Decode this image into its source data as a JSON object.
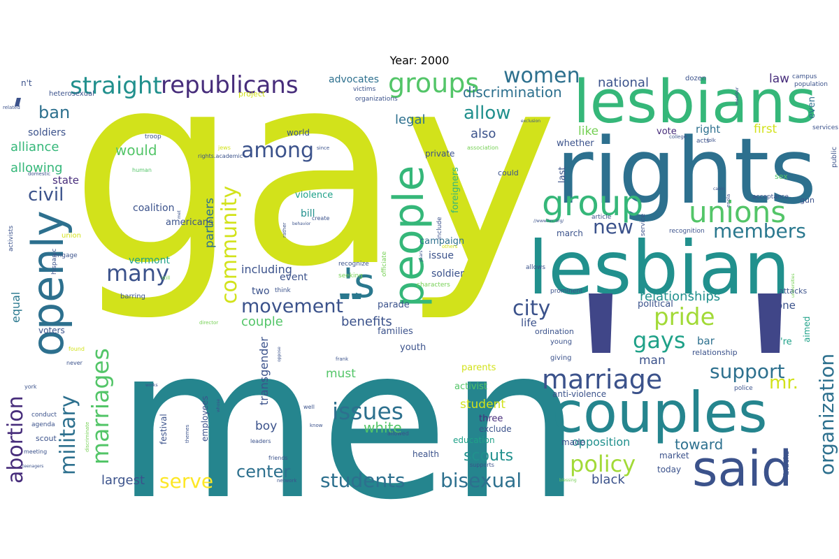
{
  "title": "Year: 2000",
  "palette": {
    "yellow": "#d2e21b",
    "lime": "#a2da37",
    "green": "#53c568",
    "lightgreen": "#75d054",
    "teal": "#25858e",
    "tealdark": "#21908d",
    "blue": "#2d708e",
    "slate": "#3b528b",
    "navy": "#404688",
    "purple": "#472d7b",
    "darkpurple": "#481d6f",
    "brightyellow": "#fde725",
    "sea": "#1fa188",
    "aqua": "#2a788e",
    "mint": "#35b779"
  },
  "words": [
    {
      "text": "gay",
      "color": "#d2e21b"
    },
    {
      "text": "men",
      "color": "#25858e"
    },
    {
      "text": "rights",
      "color": "#2d708e"
    },
    {
      "text": "lesbians",
      "color": "#35b779"
    },
    {
      "text": "lesbian",
      "color": "#21908d"
    },
    {
      "text": "couples",
      "color": "#25858e"
    },
    {
      "text": "said",
      "color": "#3b528b"
    },
    {
      "text": "openly",
      "color": "#2d708e"
    },
    {
      "text": "people",
      "color": "#35b779"
    },
    {
      "text": "'s",
      "color": "#2a788e"
    },
    {
      "text": "unions",
      "color": "#53c568"
    },
    {
      "text": "group",
      "color": "#35b779"
    },
    {
      "text": "straight",
      "color": "#21908d"
    },
    {
      "text": "republicans",
      "color": "#472d7b"
    },
    {
      "text": "groups",
      "color": "#53c568"
    },
    {
      "text": "women",
      "color": "#2d708e"
    },
    {
      "text": "community",
      "color": "#d2e21b"
    },
    {
      "text": "among",
      "color": "#3b528b"
    },
    {
      "text": "marriage",
      "color": "#3b528b"
    },
    {
      "text": "marriages",
      "color": "#53c568"
    },
    {
      "text": "military",
      "color": "#2d708e"
    },
    {
      "text": "abortion",
      "color": "#472d7b"
    },
    {
      "text": "organization",
      "color": "#2d708e"
    },
    {
      "text": "issues",
      "color": "#2d708e"
    },
    {
      "text": "students",
      "color": "#2d708e"
    },
    {
      "text": "bisexual",
      "color": "#2d708e"
    },
    {
      "text": "policy",
      "color": "#a2da37"
    },
    {
      "text": "pride",
      "color": "#a2da37"
    },
    {
      "text": "gays",
      "color": "#1fa188"
    },
    {
      "text": "support",
      "color": "#2d708e"
    },
    {
      "text": "members",
      "color": "#2a788e"
    },
    {
      "text": "many",
      "color": "#3b528b"
    },
    {
      "text": "movement",
      "color": "#3b528b"
    },
    {
      "text": "city",
      "color": "#3b528b"
    },
    {
      "text": "serve",
      "color": "#fde725"
    },
    {
      "text": "civil",
      "color": "#3b528b"
    },
    {
      "text": "ban",
      "color": "#2d708e"
    },
    {
      "text": "allow",
      "color": "#21908d"
    },
    {
      "text": "new",
      "color": "#3b528b"
    },
    {
      "text": "center",
      "color": "#2d708e"
    },
    {
      "text": "mr.",
      "color": "#d2e21b"
    },
    {
      "text": "discrimination",
      "color": "#2d708e"
    },
    {
      "text": "would",
      "color": "#53c568"
    },
    {
      "text": "alliance",
      "color": "#35b779"
    },
    {
      "text": "allowing",
      "color": "#35b779"
    },
    {
      "text": "relationships",
      "color": "#21908d"
    },
    {
      "text": "white",
      "color": "#53c568"
    },
    {
      "text": "scouts",
      "color": "#21908d"
    },
    {
      "text": "largest",
      "color": "#3b528b"
    },
    {
      "text": "legal",
      "color": "#2d708e"
    },
    {
      "text": "also",
      "color": "#3b528b"
    },
    {
      "text": "like",
      "color": "#75d054"
    },
    {
      "text": "first",
      "color": "#d2e21b"
    },
    {
      "text": "couple",
      "color": "#53c568"
    },
    {
      "text": "benefits",
      "color": "#3b528b"
    },
    {
      "text": "including",
      "color": "#3b528b"
    },
    {
      "text": "national",
      "color": "#3b528b"
    },
    {
      "text": "law",
      "color": "#472d7b"
    },
    {
      "text": "even",
      "color": "#2d708e"
    },
    {
      "text": "right",
      "color": "#2d708e"
    },
    {
      "text": "whether",
      "color": "#3b528b"
    },
    {
      "text": "vote",
      "color": "#472d7b"
    },
    {
      "text": "black",
      "color": "#3b528b"
    },
    {
      "text": "opposition",
      "color": "#21908d"
    },
    {
      "text": "toward",
      "color": "#2d708e"
    },
    {
      "text": "one",
      "color": "#3b528b"
    },
    {
      "text": "man",
      "color": "#3b528b"
    },
    {
      "text": "bar",
      "color": "#2d708e"
    },
    {
      "text": "life",
      "color": "#3b528b"
    },
    {
      "text": "equal",
      "color": "#2a788e"
    },
    {
      "text": "state",
      "color": "#472d7b"
    },
    {
      "text": "partners",
      "color": "#2d708e"
    },
    {
      "text": "transgender",
      "color": "#3b528b"
    },
    {
      "text": "must",
      "color": "#53c568"
    },
    {
      "text": "student",
      "color": "#d2e21b"
    },
    {
      "text": "boy",
      "color": "#3b528b"
    },
    {
      "text": "soldiers",
      "color": "#3b528b"
    },
    {
      "text": "advocates",
      "color": "#2d708e"
    },
    {
      "text": "coalition",
      "color": "#3b528b"
    },
    {
      "text": "americans",
      "color": "#3b528b"
    },
    {
      "text": "vermont",
      "color": "#1fa188"
    },
    {
      "text": "violence",
      "color": "#1fa188"
    },
    {
      "text": "bill",
      "color": "#21908d"
    },
    {
      "text": "issue",
      "color": "#3b528b"
    },
    {
      "text": "soldier",
      "color": "#3b528b"
    },
    {
      "text": "campaign",
      "color": "#2d708e"
    },
    {
      "text": "parade",
      "color": "#3b528b"
    },
    {
      "text": "families",
      "color": "#3b528b"
    },
    {
      "text": "youth",
      "color": "#3b528b"
    },
    {
      "text": "two",
      "color": "#3b528b"
    },
    {
      "text": "event",
      "color": "#3b528b"
    },
    {
      "text": "abortion2",
      "color": "#472d7b"
    },
    {
      "text": "world",
      "color": "#3b528b"
    },
    {
      "text": "private",
      "color": "#3b528b"
    },
    {
      "text": "foreigners",
      "color": "#35b779"
    },
    {
      "text": "could",
      "color": "#3b528b"
    },
    {
      "text": "last",
      "color": "#3b528b"
    },
    {
      "text": "march",
      "color": "#3b528b"
    },
    {
      "text": "political",
      "color": "#3b528b"
    },
    {
      "text": "activist",
      "color": "#53c568"
    },
    {
      "text": "three",
      "color": "#472d7b"
    },
    {
      "text": "exclude",
      "color": "#3b528b"
    },
    {
      "text": "education",
      "color": "#1fa188"
    },
    {
      "text": "made",
      "color": "#3b528b"
    },
    {
      "text": "market",
      "color": "#3b528b"
    },
    {
      "text": "today",
      "color": "#3b528b"
    },
    {
      "text": "health",
      "color": "#3b528b"
    },
    {
      "text": "parents",
      "color": "#d2e21b"
    },
    {
      "text": "anti-violence",
      "color": "#3b528b"
    },
    {
      "text": "employees",
      "color": "#3b528b"
    },
    {
      "text": "festival",
      "color": "#3b528b"
    },
    {
      "text": "scout",
      "color": "#3b528b"
    },
    {
      "text": "voters",
      "color": "#3b528b"
    },
    {
      "text": "'re",
      "color": "#1fa188"
    },
    {
      "text": "aimed",
      "color": "#1fa188"
    },
    {
      "text": "relationship",
      "color": "#3b528b"
    },
    {
      "text": "attacks",
      "color": "#3b528b"
    },
    {
      "text": "public",
      "color": "#3b528b"
    },
    {
      "text": "gun",
      "color": "#3b528b"
    },
    {
      "text": "sex",
      "color": "#53c568"
    },
    {
      "text": "blacks",
      "color": "#3b528b"
    },
    {
      "text": "young",
      "color": "#3b528b"
    },
    {
      "text": "ordination",
      "color": "#3b528b"
    },
    {
      "text": "giving",
      "color": "#3b528b"
    },
    {
      "text": "police",
      "color": "#3b528b"
    },
    {
      "text": "services",
      "color": "#3b528b"
    },
    {
      "text": "population",
      "color": "#3b528b"
    },
    {
      "text": "campus",
      "color": "#3b528b"
    },
    {
      "text": "dozen",
      "color": "#3b528b"
    },
    {
      "text": "acceptance",
      "color": "#3b528b"
    },
    {
      "text": "acts",
      "color": "#3b528b"
    },
    {
      "text": "recognition",
      "color": "#3b528b"
    },
    {
      "text": "prominent",
      "color": "#3b528b"
    },
    {
      "text": "allows",
      "color": "#3b528b"
    },
    {
      "text": "service",
      "color": "#3b528b"
    },
    {
      "text": "article",
      "color": "#3b528b"
    },
    {
      "text": "include",
      "color": "#3b528b"
    },
    {
      "text": "recognize",
      "color": "#3b528b"
    },
    {
      "text": "seeking",
      "color": "#75d054"
    },
    {
      "text": "characters",
      "color": "#75d054"
    },
    {
      "text": "officiate",
      "color": "#75d054"
    },
    {
      "text": "think",
      "color": "#3b528b"
    },
    {
      "text": "n't",
      "color": "#3b528b"
    },
    {
      "text": "heterosexual",
      "color": "#3b528b"
    },
    {
      "text": "project",
      "color": "#d2e21b"
    },
    {
      "text": "victims",
      "color": "#3b528b"
    },
    {
      "text": "organizations",
      "color": "#3b528b"
    },
    {
      "text": "troop",
      "color": "#3b528b"
    },
    {
      "text": "rights.academic",
      "color": "#3b528b"
    },
    {
      "text": "human",
      "color": "#53c568"
    },
    {
      "text": "association",
      "color": "#75d054"
    },
    {
      "text": "since",
      "color": "#3b528b"
    },
    {
      "text": "jews",
      "color": "#d2e21b"
    },
    {
      "text": "create",
      "color": "#3b528b"
    },
    {
      "text": "rather",
      "color": "#3b528b"
    },
    {
      "text": "behavior",
      "color": "#3b528b"
    },
    {
      "text": "hispanic",
      "color": "#3b528b"
    },
    {
      "text": "union",
      "color": "#d2e21b"
    },
    {
      "text": "activists",
      "color": "#3b528b"
    },
    {
      "text": "engage",
      "color": "#3b528b"
    },
    {
      "text": "domestic",
      "color": "#3b528b"
    },
    {
      "text": "related",
      "color": "#3b528b"
    },
    {
      "text": "barring",
      "color": "#3b528b"
    },
    {
      "text": "still",
      "color": "#75d054"
    },
    {
      "text": "director",
      "color": "#75d054"
    },
    {
      "text": "found",
      "color": "#d2e21b"
    },
    {
      "text": "never",
      "color": "#3b528b"
    },
    {
      "text": "york",
      "color": "#3b528b"
    },
    {
      "text": "conduct",
      "color": "#3b528b"
    },
    {
      "text": "agenda",
      "color": "#3b528b"
    },
    {
      "text": "meeting",
      "color": "#3b528b"
    },
    {
      "text": "teenagers",
      "color": "#3b528b"
    },
    {
      "text": "discriminate",
      "color": "#75d054"
    },
    {
      "text": "themes",
      "color": "#3b528b"
    },
    {
      "text": "leaders",
      "color": "#3b528b"
    },
    {
      "text": "friends",
      "color": "#3b528b"
    },
    {
      "text": "network",
      "color": "#3b528b"
    },
    {
      "text": "works",
      "color": "#3b528b"
    },
    {
      "text": "whose",
      "color": "#3b528b"
    },
    {
      "text": "oppose",
      "color": "#3b528b"
    },
    {
      "text": "well",
      "color": "#3b528b"
    },
    {
      "text": "frank",
      "color": "#3b528b"
    },
    {
      "text": "know",
      "color": "#3b528b"
    },
    {
      "text": "allowed",
      "color": "#3b528b"
    },
    {
      "text": "supports",
      "color": "#3b528b"
    },
    {
      "text": "blessing",
      "color": "#75d054"
    },
    {
      "text": "others",
      "color": "#d2e21b"
    },
    {
      "text": "years",
      "color": "#3b528b"
    },
    {
      "text": "met",
      "color": "#3b528b"
    },
    {
      "text": "cabin",
      "color": "#3b528b"
    },
    {
      "text": "enola",
      "color": "#3b528b"
    },
    {
      "text": "folk",
      "color": "#3b528b"
    },
    {
      "text": "college",
      "color": "#3b528b"
    },
    {
      "text": "exclusion",
      "color": "#3b528b"
    },
    {
      "text": "member",
      "color": "#3b528b"
    },
    {
      "text": "universities",
      "color": "#75d054"
    },
    {
      "text": "//www.hrc.org/",
      "color": "#3b528b"
    },
    {
      "text": "` (mark)",
      "color": "#3b528b"
    }
  ]
}
